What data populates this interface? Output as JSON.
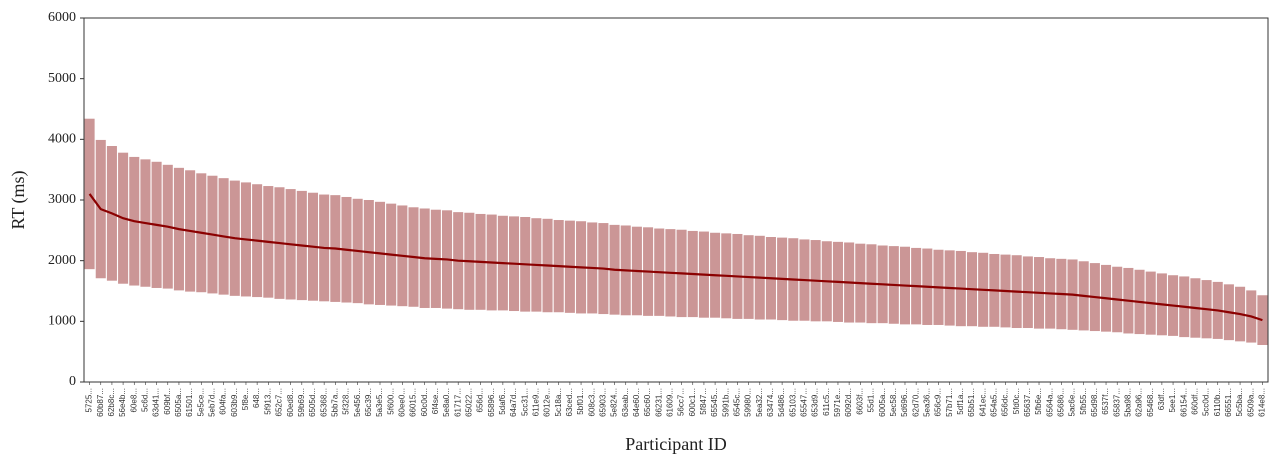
{
  "chart_data": {
    "type": "range_mean",
    "xlabel": "Participant ID",
    "ylabel": "RT (ms)",
    "ylim": [
      0,
      6000
    ],
    "yticks": [
      0,
      1000,
      2000,
      3000,
      4000,
      5000,
      6000
    ],
    "range_color": "#a04040",
    "mean_color": "#8b0000",
    "categories": [
      "5725...",
      "60b87...",
      "62b8c...",
      "56e4b...",
      "60e8...",
      "5c6d...",
      "63d41...",
      "609bf...",
      "6505a...",
      "61501...",
      "5e5ce...",
      "5eb7d...",
      "604fa...",
      "603b9...",
      "5f8e...",
      "648...",
      "5f913...",
      "652c7...",
      "60ed8...",
      "59b69...",
      "6505d...",
      "65368...",
      "5bb7a...",
      "5f328...",
      "5e456...",
      "65c39...",
      "5a3e5...",
      "5f600...",
      "60ee0...",
      "66015...",
      "60c0d...",
      "6f4se...",
      "5e8a0...",
      "61717...",
      "65022...",
      "656d...",
      "65896...",
      "5daf6...",
      "64a7d...",
      "5cc31...",
      "611e9...",
      "6012e...",
      "5c18a...",
      "63ced...",
      "5bf01...",
      "608c3...",
      "65903...",
      "5e824...",
      "63eab...",
      "64e60...",
      "65c60...",
      "66231...",
      "61609...",
      "56cc7...",
      "600c1...",
      "5f847...",
      "65545...",
      "5991b...",
      "6545c...",
      "59980...",
      "5ea32...",
      "63474...",
      "5d486...",
      "65103...",
      "65547...",
      "653d9...",
      "611c5...",
      "5971e...",
      "6092d...",
      "6603f...",
      "55d1...",
      "6005a...",
      "5ec58...",
      "5d696...",
      "62d70...",
      "5ea36...",
      "656c9...",
      "57b71...",
      "5df1a...",
      "65b51...",
      "641ec...",
      "654a5...",
      "656dc...",
      "5fd0c...",
      "65637...",
      "5fb6e...",
      "6564a...",
      "65686...",
      "5ac6e...",
      "5fb55...",
      "65d98...",
      "6537f...",
      "65837...",
      "5ba98...",
      "62a96...",
      "65468...",
      "63df...",
      "5ee1...",
      "66154...",
      "660df...",
      "5cc0d...",
      "6110b...",
      "66551...",
      "5c5ba...",
      "6509a...",
      "614e8..."
    ],
    "values": [
      3100,
      2850,
      2780,
      2700,
      2650,
      2620,
      2590,
      2560,
      2520,
      2490,
      2460,
      2430,
      2400,
      2370,
      2350,
      2330,
      2310,
      2290,
      2270,
      2250,
      2230,
      2210,
      2200,
      2180,
      2160,
      2140,
      2120,
      2100,
      2080,
      2060,
      2040,
      2030,
      2020,
      2000,
      1990,
      1980,
      1970,
      1960,
      1950,
      1940,
      1930,
      1920,
      1910,
      1900,
      1890,
      1880,
      1870,
      1850,
      1840,
      1830,
      1820,
      1810,
      1800,
      1790,
      1780,
      1770,
      1760,
      1750,
      1740,
      1730,
      1720,
      1710,
      1700,
      1690,
      1680,
      1670,
      1660,
      1650,
      1640,
      1630,
      1620,
      1610,
      1600,
      1590,
      1580,
      1570,
      1560,
      1550,
      1540,
      1530,
      1520,
      1510,
      1500,
      1490,
      1480,
      1470,
      1460,
      1450,
      1440,
      1420,
      1400,
      1380,
      1360,
      1340,
      1320,
      1300,
      1280,
      1260,
      1240,
      1220,
      1200,
      1180,
      1150,
      1120,
      1080,
      1020
    ],
    "low": [
      1860,
      1710,
      1670,
      1620,
      1590,
      1570,
      1550,
      1540,
      1510,
      1490,
      1480,
      1460,
      1440,
      1420,
      1410,
      1400,
      1390,
      1370,
      1360,
      1350,
      1340,
      1330,
      1320,
      1310,
      1300,
      1280,
      1270,
      1260,
      1250,
      1240,
      1220,
      1220,
      1210,
      1200,
      1190,
      1190,
      1180,
      1180,
      1170,
      1160,
      1160,
      1150,
      1150,
      1140,
      1130,
      1130,
      1120,
      1110,
      1100,
      1100,
      1090,
      1090,
      1080,
      1070,
      1070,
      1060,
      1060,
      1050,
      1040,
      1040,
      1030,
      1030,
      1020,
      1010,
      1010,
      1000,
      1000,
      990,
      980,
      980,
      970,
      970,
      960,
      950,
      950,
      940,
      940,
      930,
      920,
      920,
      910,
      910,
      900,
      890,
      890,
      880,
      880,
      870,
      860,
      850,
      840,
      830,
      820,
      800,
      790,
      780,
      770,
      760,
      740,
      730,
      720,
      710,
      690,
      670,
      650,
      610
    ],
    "high": [
      4340,
      3990,
      3890,
      3780,
      3710,
      3670,
      3630,
      3580,
      3530,
      3490,
      3440,
      3400,
      3360,
      3320,
      3290,
      3260,
      3230,
      3210,
      3180,
      3150,
      3120,
      3090,
      3080,
      3050,
      3020,
      3000,
      2970,
      2940,
      2910,
      2880,
      2860,
      2840,
      2830,
      2800,
      2790,
      2770,
      2760,
      2740,
      2730,
      2720,
      2700,
      2690,
      2670,
      2660,
      2650,
      2630,
      2620,
      2590,
      2580,
      2560,
      2550,
      2530,
      2520,
      2510,
      2490,
      2480,
      2460,
      2450,
      2440,
      2420,
      2410,
      2390,
      2380,
      2370,
      2350,
      2340,
      2320,
      2310,
      2300,
      2280,
      2270,
      2250,
      2240,
      2230,
      2210,
      2200,
      2180,
      2170,
      2160,
      2140,
      2130,
      2110,
      2100,
      2090,
      2070,
      2060,
      2040,
      2030,
      2020,
      1990,
      1960,
      1930,
      1900,
      1880,
      1850,
      1820,
      1790,
      1760,
      1740,
      1710,
      1680,
      1650,
      1610,
      1570,
      1510,
      1430
    ]
  }
}
